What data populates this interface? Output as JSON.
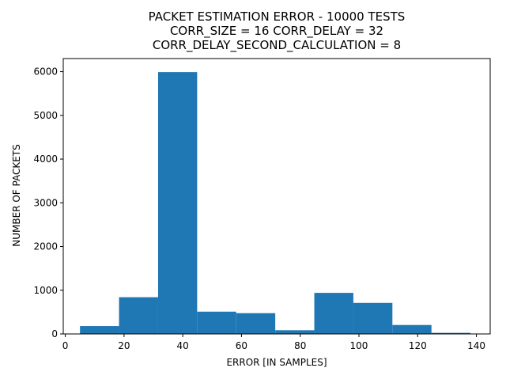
{
  "chart_data": {
    "type": "bar",
    "title_lines": [
      "PACKET ESTIMATION ERROR - 10000 TESTS",
      "CORR_SIZE = 16 CORR_DELAY = 32",
      "CORR_DELAY_SECOND_CALCULATION = 8"
    ],
    "xlabel": "ERROR [IN SAMPLES]",
    "ylabel": "NUMBER OF PACKETS",
    "xlim": [
      -0.7,
      144.7
    ],
    "ylim": [
      0,
      6300
    ],
    "xticks": [
      0,
      20,
      40,
      60,
      80,
      100,
      120,
      140
    ],
    "yticks": [
      0,
      1000,
      2000,
      3000,
      4000,
      5000,
      6000
    ],
    "bar_color": "#1f77b4",
    "bins": [
      {
        "x0": 5.0,
        "x1": 18.3,
        "value": 180
      },
      {
        "x0": 18.3,
        "x1": 31.6,
        "value": 840
      },
      {
        "x0": 31.6,
        "x1": 44.9,
        "value": 5990
      },
      {
        "x0": 44.9,
        "x1": 58.2,
        "value": 510
      },
      {
        "x0": 58.2,
        "x1": 71.5,
        "value": 475
      },
      {
        "x0": 71.5,
        "x1": 84.8,
        "value": 85
      },
      {
        "x0": 84.8,
        "x1": 98.1,
        "value": 940
      },
      {
        "x0": 98.1,
        "x1": 111.4,
        "value": 710
      },
      {
        "x0": 111.4,
        "x1": 124.7,
        "value": 205
      },
      {
        "x0": 124.7,
        "x1": 138.0,
        "value": 25
      }
    ]
  }
}
